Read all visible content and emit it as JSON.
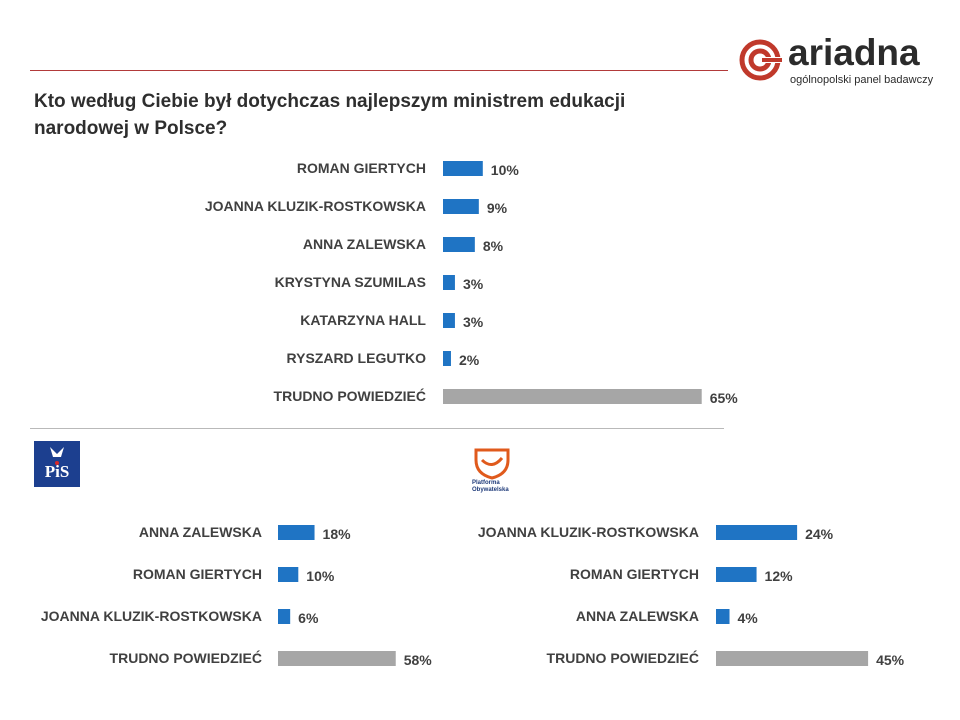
{
  "logo": {
    "name": "ariadna",
    "tagline": "ogólnopolski panel badawczy"
  },
  "question": "Kto według Ciebie był dotychczas najlepszym ministrem edukacji narodowej w Polsce?",
  "party_logos": {
    "pis": {
      "text": "PiS",
      "color": "#1c3f8f"
    },
    "po": {
      "text_line1": "Platforma",
      "text_line2": "Obywatelska",
      "color": "#e05a1c"
    }
  },
  "colors": {
    "blue": "#1f74c4",
    "gray": "#a6a6a6",
    "accent_red": "#b23a3a"
  },
  "chart_data": [
    {
      "type": "bar",
      "orientation": "horizontal",
      "categories": [
        "ROMAN GIERTYCH",
        "JOANNA KLUZIK-ROSTKOWSKA",
        "ANNA ZALEWSKA",
        "KRYSTYNA SZUMILAS",
        "KATARZYNA HALL",
        "RYSZARD LEGUTKO",
        "TRUDNO POWIEDZIEĆ"
      ],
      "values": [
        10,
        9,
        8,
        3,
        3,
        2,
        65
      ],
      "value_labels": [
        "10%",
        "9%",
        "8%",
        "3%",
        "3%",
        "2%",
        "65%"
      ],
      "bar_colors": [
        "#1f74c4",
        "#1f74c4",
        "#1f74c4",
        "#1f74c4",
        "#1f74c4",
        "#1f74c4",
        "#a6a6a6"
      ]
    },
    {
      "type": "bar",
      "orientation": "horizontal",
      "categories": [
        "ANNA ZALEWSKA",
        "ROMAN GIERTYCH",
        "JOANNA KLUZIK-ROSTKOWSKA",
        "TRUDNO POWIEDZIEĆ"
      ],
      "values": [
        18,
        10,
        6,
        58
      ],
      "value_labels": [
        "18%",
        "10%",
        "6%",
        "58%"
      ],
      "bar_colors": [
        "#1f74c4",
        "#1f74c4",
        "#1f74c4",
        "#a6a6a6"
      ]
    },
    {
      "type": "bar",
      "orientation": "horizontal",
      "categories": [
        "JOANNA KLUZIK-ROSTKOWSKA",
        "ROMAN GIERTYCH",
        "ANNA ZALEWSKA",
        "TRUDNO POWIEDZIEĆ"
      ],
      "values": [
        24,
        12,
        4,
        45
      ],
      "value_labels": [
        "24%",
        "12%",
        "4%",
        "45%"
      ],
      "bar_colors": [
        "#1f74c4",
        "#1f74c4",
        "#1f74c4",
        "#a6a6a6"
      ]
    }
  ]
}
